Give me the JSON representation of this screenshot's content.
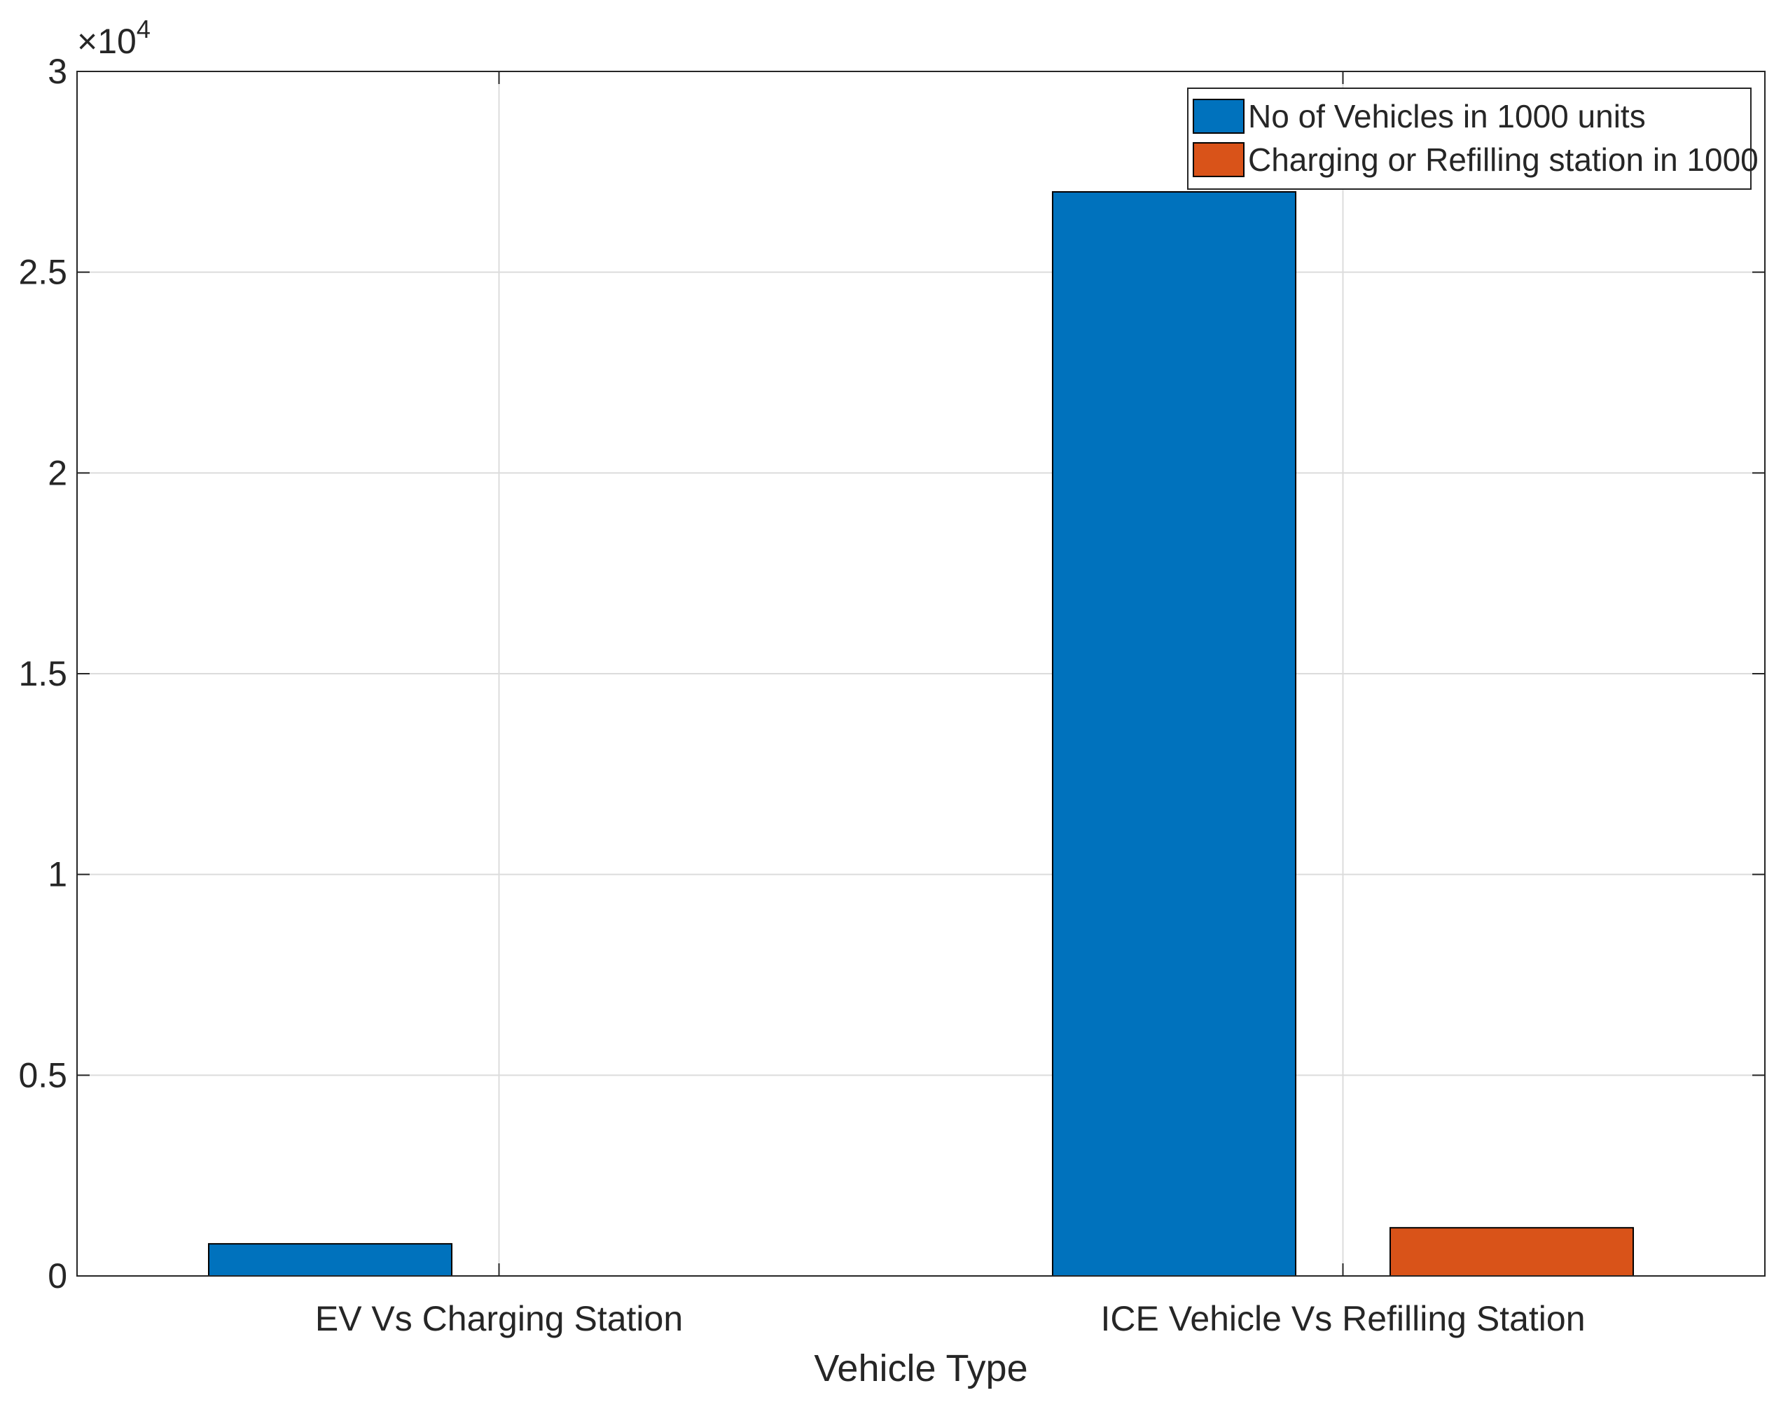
{
  "chart_data": {
    "type": "bar",
    "categories": [
      "EV Vs Charging Station",
      "ICE Vehicle Vs Refilling Station"
    ],
    "series": [
      {
        "name": "No of Vehicles in 1000 units",
        "values": [
          800,
          27000
        ],
        "color": "#0072BD"
      },
      {
        "name": "Charging or Refilling station in 1000",
        "values": [
          0,
          1200
        ],
        "color": "#D95319"
      }
    ],
    "title": "",
    "xlabel": "Vehicle Type",
    "ylabel": "",
    "ylim": [
      0,
      30000
    ],
    "yticks": [
      0,
      5000,
      10000,
      15000,
      20000,
      25000,
      30000
    ],
    "ytick_labels": [
      "0",
      "0.5",
      "1",
      "1.5",
      "2",
      "2.5",
      "3"
    ],
    "y_exponent_label": {
      "base": "×10",
      "power": "4"
    },
    "grid": true,
    "legend_position": "top-right"
  }
}
